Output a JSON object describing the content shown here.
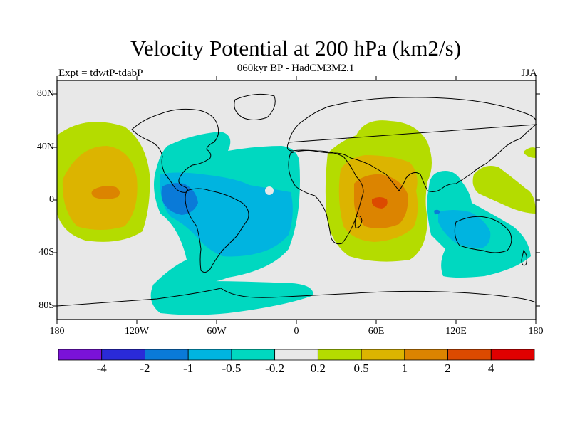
{
  "title": "Velocity Potential at 200 hPa (km2/s)",
  "subtitle": "060kyr BP - HadCM3M2.1",
  "left_label": "Expt = tdwtP-tdabP",
  "right_label": "JJA",
  "lat_labels": [
    "80N",
    "40N",
    "0",
    "40S",
    "80S"
  ],
  "lon_labels": [
    "180",
    "120W",
    "60W",
    "0",
    "60E",
    "120E",
    "180"
  ],
  "colorbar": {
    "colors": [
      "#7a12d8",
      "#2a2ad8",
      "#0a7ad8",
      "#00b4e0",
      "#00d8c0",
      "#e8e8e8",
      "#b4dc00",
      "#dcb400",
      "#dc8400",
      "#dc4a00",
      "#e00000"
    ],
    "labels": [
      "-4",
      "-2",
      "-1",
      "-0.5",
      "-0.2",
      "0.2",
      "0.5",
      "1",
      "2",
      "4"
    ]
  },
  "map_colors": {
    "background": "#e8e8e8",
    "neg_02": "#00d8c0",
    "neg_05": "#00b4e0",
    "neg_1": "#0a7ad8",
    "pos_02": "#b4dc00",
    "pos_05": "#dcb400",
    "pos_1": "#dc8400",
    "pos_2": "#dc4a00"
  }
}
